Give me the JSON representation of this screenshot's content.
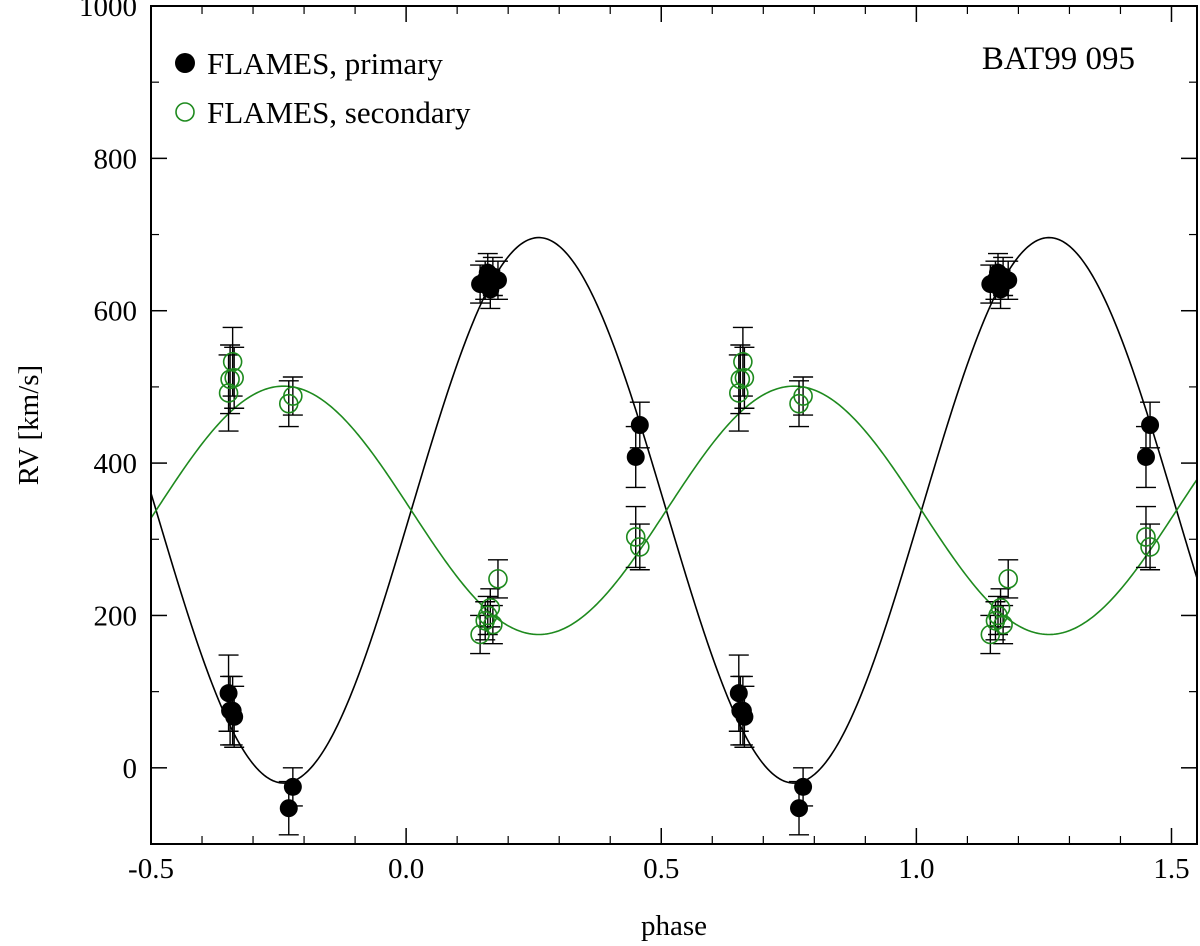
{
  "chart_data": {
    "type": "scatter",
    "title": "BAT99 095",
    "xlabel": "phase",
    "ylabel": "RV [km/s]",
    "xlim": [
      -0.5,
      1.55
    ],
    "ylim": [
      -100,
      1000
    ],
    "x_ticks": [
      -0.5,
      0.0,
      0.5,
      1.0,
      1.5
    ],
    "x_tick_labels": [
      "-0.5",
      "0.0",
      "0.5",
      "1.0",
      "1.5"
    ],
    "y_ticks": [
      0,
      200,
      400,
      600,
      800,
      1000
    ],
    "y_tick_labels": [
      "0",
      "200",
      "400",
      "600",
      "800",
      "1000"
    ],
    "legend_position": "top-left",
    "colors": {
      "primary": "#000000",
      "secondary": "#1e8a1e"
    },
    "series": [
      {
        "name": "FLAMES, primary",
        "marker": "filled-circle",
        "color": "#000000",
        "x": [
          -0.348,
          -0.345,
          -0.34,
          -0.337,
          -0.23,
          -0.222,
          0.145,
          0.155,
          0.16,
          0.165,
          0.17,
          0.18,
          0.45,
          0.458
        ],
        "y": [
          98,
          75,
          75,
          67,
          -53,
          -25,
          635,
          640,
          650,
          628,
          645,
          640,
          408,
          450
        ],
        "err": [
          50,
          45,
          45,
          40,
          35,
          25,
          25,
          25,
          25,
          25,
          25,
          25,
          40,
          30
        ]
      },
      {
        "name": "FLAMES, secondary",
        "marker": "open-circle",
        "color": "#1e8a1e",
        "x": [
          -0.348,
          -0.345,
          -0.34,
          -0.337,
          -0.23,
          -0.222,
          0.145,
          0.155,
          0.16,
          0.165,
          0.17,
          0.18,
          0.45,
          0.458
        ],
        "y": [
          492,
          510,
          533,
          512,
          478,
          488,
          175,
          193,
          200,
          210,
          188,
          248,
          303,
          290
        ],
        "err": [
          50,
          45,
          45,
          40,
          30,
          25,
          25,
          25,
          25,
          25,
          25,
          25,
          40,
          30
        ]
      }
    ],
    "model_curves": [
      {
        "name": "primary orbit fit",
        "color": "#000000",
        "gamma": 338,
        "amplitude": 358,
        "phase_of_max": 0.26
      },
      {
        "name": "secondary orbit fit",
        "color": "#1e8a1e",
        "gamma": 338,
        "amplitude": 163,
        "phase_of_max": -0.24
      }
    ]
  }
}
